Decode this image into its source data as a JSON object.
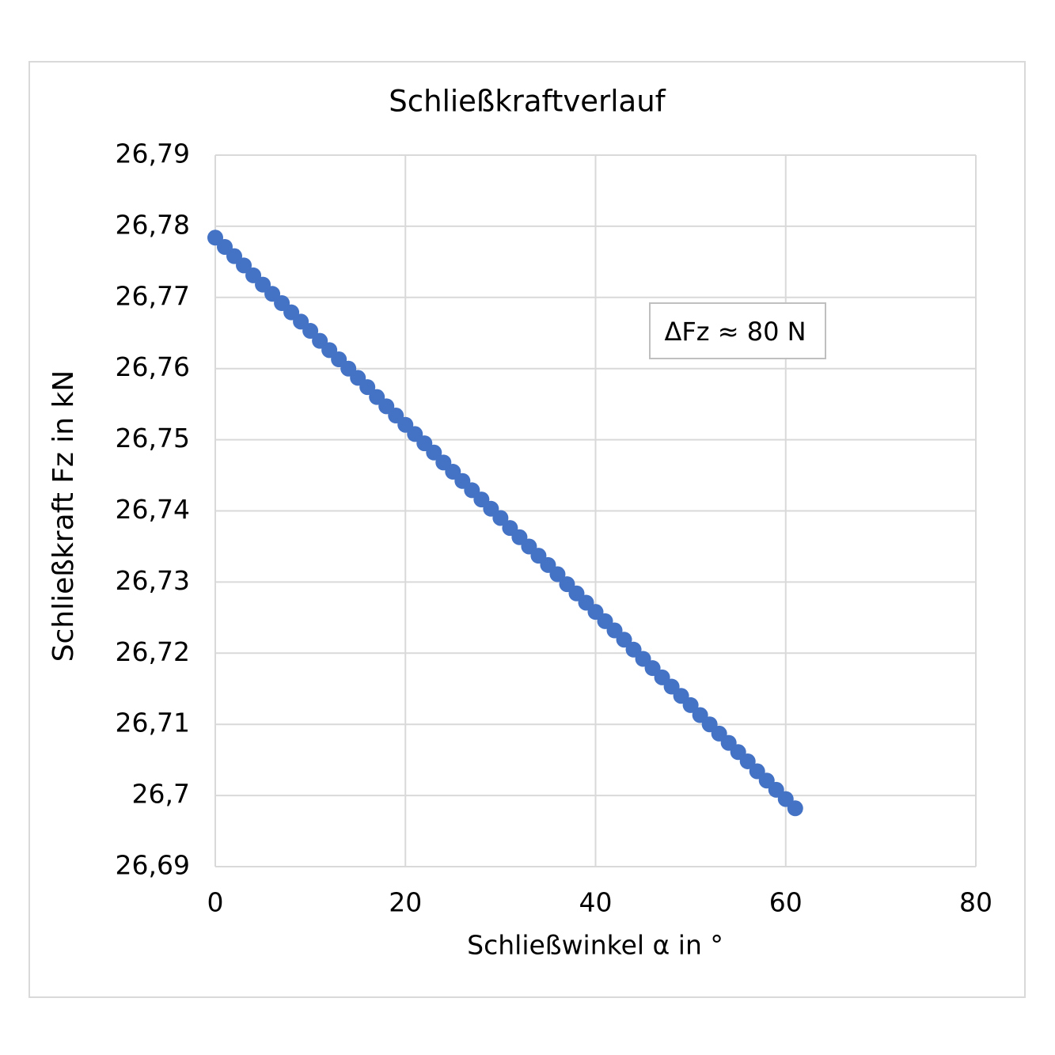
{
  "chart_data": {
    "type": "scatter",
    "title": "Schließkraftverlauf",
    "x_label": "Schließwinkel α in °",
    "y_label": "Schließkraft Fz in kN",
    "annotation": "ΔFz ≈ 80 N",
    "color": "#4472c4",
    "grid": true,
    "x": [
      0,
      1,
      2,
      3,
      4,
      5,
      6,
      7,
      8,
      9,
      10,
      11,
      12,
      13,
      14,
      15,
      16,
      17,
      18,
      19,
      20,
      21,
      22,
      23,
      24,
      25,
      26,
      27,
      28,
      29,
      30,
      31,
      32,
      33,
      34,
      35,
      36,
      37,
      38,
      39,
      40,
      41,
      42,
      43,
      44,
      45,
      46,
      47,
      48,
      49,
      50,
      51,
      52,
      53,
      54,
      55,
      56,
      57,
      58,
      59,
      60,
      61
    ],
    "values": [
      26.7784,
      26.7771,
      26.7758,
      26.7745,
      26.7731,
      26.7718,
      26.7705,
      26.7692,
      26.7679,
      26.7666,
      26.7653,
      26.7639,
      26.7626,
      26.7613,
      26.76,
      26.7587,
      26.7574,
      26.756,
      26.7547,
      26.7534,
      26.7521,
      26.7508,
      26.7495,
      26.7482,
      26.7468,
      26.7455,
      26.7442,
      26.7429,
      26.7416,
      26.7403,
      26.739,
      26.7376,
      26.7363,
      26.735,
      26.7337,
      26.7324,
      26.7311,
      26.7297,
      26.7284,
      26.7271,
      26.7258,
      26.7245,
      26.7232,
      26.7219,
      26.7205,
      26.7192,
      26.7179,
      26.7166,
      26.7153,
      26.714,
      26.7127,
      26.7113,
      26.71,
      26.7087,
      26.7074,
      26.7061,
      26.7048,
      26.7034,
      26.7021,
      26.7008,
      26.6995,
      26.6982
    ],
    "xlim": [
      0,
      80
    ],
    "xticks": [
      0,
      20,
      40,
      60,
      80
    ],
    "ylim": [
      26.69,
      26.79
    ],
    "yticks": [
      {
        "value": 26.69,
        "label": "26,69"
      },
      {
        "value": 26.7,
        "label": "26,7"
      },
      {
        "value": 26.71,
        "label": "26,71"
      },
      {
        "value": 26.72,
        "label": "26,72"
      },
      {
        "value": 26.73,
        "label": "26,73"
      },
      {
        "value": 26.74,
        "label": "26,74"
      },
      {
        "value": 26.75,
        "label": "26,75"
      },
      {
        "value": 26.76,
        "label": "26,76"
      },
      {
        "value": 26.77,
        "label": "26,77"
      },
      {
        "value": 26.78,
        "label": "26,78"
      },
      {
        "value": 26.79,
        "label": "26,79"
      }
    ]
  }
}
